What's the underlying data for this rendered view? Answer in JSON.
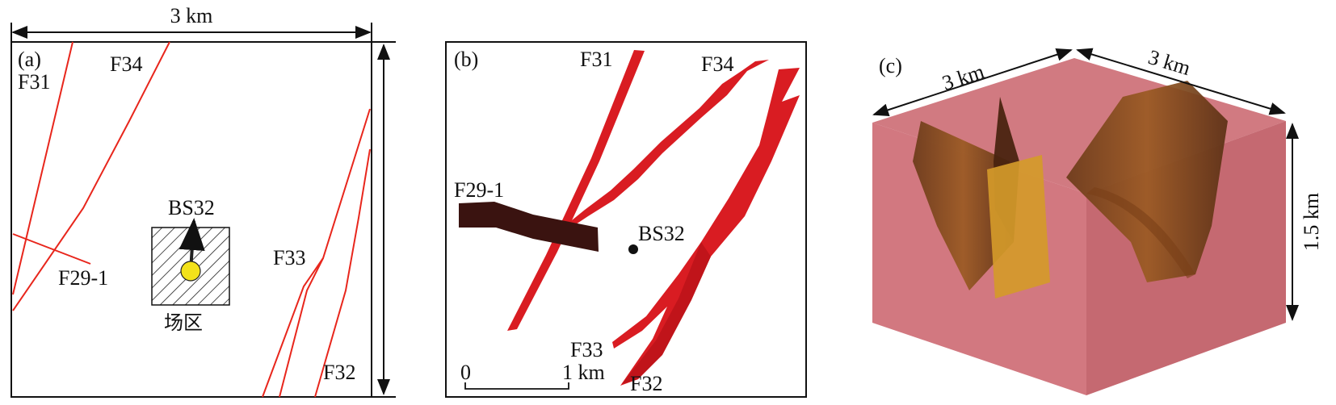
{
  "panel_a": {
    "label": "(a)",
    "width_label": "3 km",
    "faults": [
      "F31",
      "F34",
      "F29-1",
      "F33",
      "F32"
    ],
    "well": "BS32",
    "site": "场区"
  },
  "panel_b": {
    "label": "(b)",
    "faults": [
      "F31",
      "F34",
      "F29-1",
      "F33",
      "F32"
    ],
    "well": "BS32",
    "scale": {
      "start": "0",
      "end": "1 km"
    }
  },
  "panel_c": {
    "label": "(c)",
    "edge_left": "3 km",
    "edge_right": "3 km",
    "depth": "1.5 km"
  },
  "colors": {
    "fault_line": "#e8261c",
    "fault_surface_b": "#d91c22",
    "dark_fault": "#3a1310",
    "well_dot": "#f3e21b",
    "block": "#c4545e",
    "fault_3d": "#8a4d1e",
    "fault_3d_light": "#d49a2a"
  }
}
